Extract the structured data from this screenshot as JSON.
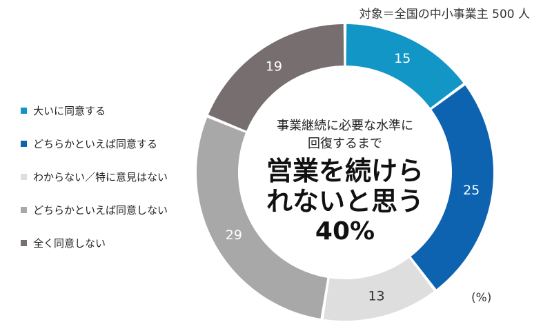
{
  "note": "対象＝全国の中小事業主 500 人",
  "unit": "(%)",
  "colors": [
    "#1296c6",
    "#0e63b0",
    "#dedede",
    "#a8a8a8",
    "#776f6f"
  ],
  "legend": [
    "大いに同意する",
    "どちらかといえば同意する",
    "わからない／特に意見はない",
    "どちらかといえば同意しない",
    "全く同意しない"
  ],
  "center": {
    "sub1": "事業継続に必要な水準に",
    "sub2": "回復するまで",
    "main1": "営業を続けら",
    "main2": "れないと思う",
    "pct": "40%"
  },
  "chart_data": {
    "type": "pie",
    "donut": true,
    "categories": [
      "大いに同意する",
      "どちらかといえば同意する",
      "わからない／特に意見はない",
      "どちらかといえば同意しない",
      "全く同意しない"
    ],
    "values": [
      15,
      25,
      13,
      29,
      19
    ],
    "legend_position": "left"
  }
}
